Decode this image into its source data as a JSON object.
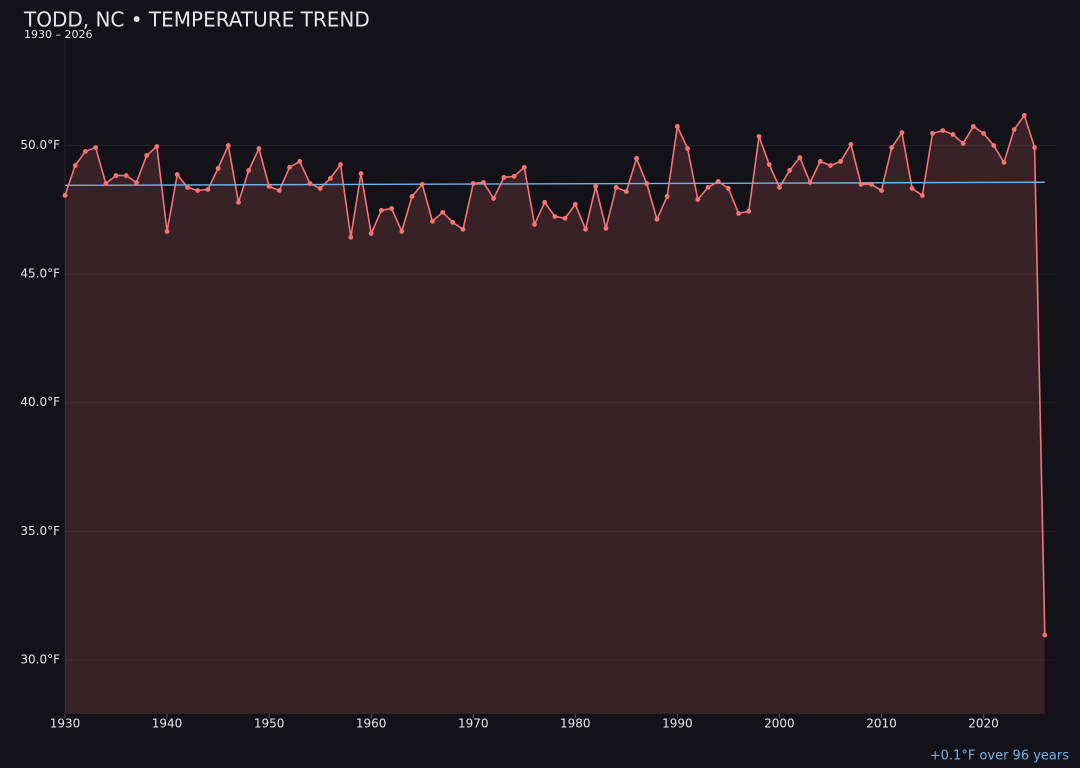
{
  "chart_data": {
    "type": "line",
    "title": "TODD, NC • TEMPERATURE TREND",
    "subtitle": "1930 – 2026",
    "annotation": "+0.1°F over 96 years",
    "x": [
      1930,
      1931,
      1932,
      1933,
      1934,
      1935,
      1936,
      1937,
      1938,
      1939,
      1940,
      1941,
      1942,
      1943,
      1944,
      1945,
      1946,
      1947,
      1948,
      1949,
      1950,
      1951,
      1952,
      1953,
      1954,
      1955,
      1956,
      1957,
      1958,
      1959,
      1960,
      1961,
      1962,
      1963,
      1964,
      1965,
      1966,
      1967,
      1968,
      1969,
      1970,
      1971,
      1972,
      1973,
      1974,
      1975,
      1976,
      1977,
      1978,
      1979,
      1980,
      1981,
      1982,
      1983,
      1984,
      1985,
      1986,
      1987,
      1988,
      1989,
      1990,
      1991,
      1992,
      1993,
      1994,
      1995,
      1996,
      1997,
      1998,
      1999,
      2000,
      2001,
      2002,
      2003,
      2004,
      2005,
      2006,
      2007,
      2008,
      2009,
      2010,
      2011,
      2012,
      2013,
      2014,
      2015,
      2016,
      2017,
      2018,
      2019,
      2020,
      2021,
      2022,
      2023,
      2024,
      2025,
      2026
    ],
    "series": [
      {
        "color": "#f47474",
        "values": [
          48.06,
          49.22,
          49.77,
          49.92,
          48.52,
          48.83,
          48.83,
          48.56,
          49.61,
          49.96,
          46.66,
          48.87,
          48.37,
          48.25,
          48.29,
          49.11,
          50.0,
          47.79,
          49.03,
          49.88,
          48.41,
          48.25,
          49.15,
          49.38,
          48.52,
          48.33,
          48.72,
          49.26,
          46.43,
          48.91,
          46.58,
          47.48,
          47.55,
          46.66,
          48.02,
          48.49,
          47.05,
          47.4,
          47.01,
          46.74,
          48.52,
          48.56,
          47.94,
          48.76,
          48.8,
          49.15,
          46.93,
          47.79,
          47.24,
          47.17,
          47.71,
          46.74,
          48.41,
          46.78,
          48.37,
          48.21,
          49.5,
          48.52,
          47.13,
          48.02,
          50.74,
          49.88,
          47.9,
          48.37,
          48.6,
          48.33,
          47.36,
          47.44,
          50.35,
          49.26,
          48.37,
          49.03,
          49.53,
          48.56,
          49.38,
          49.22,
          49.38,
          50.04,
          48.49,
          48.49,
          48.25,
          49.92,
          50.5,
          48.33,
          48.06,
          50.47,
          50.58,
          50.43,
          50.08,
          50.74,
          50.47,
          50.0,
          49.34,
          50.62,
          51.17,
          49.92,
          30.97
        ]
      }
    ],
    "trend": {
      "color": "#6fb3ea",
      "x": [
        1930,
        2026
      ],
      "values": [
        48.45,
        48.57
      ]
    },
    "xlim": [
      1930,
      2027
    ],
    "xticks": [
      1930,
      1940,
      1950,
      1960,
      1970,
      1980,
      1990,
      2000,
      2010,
      2020
    ],
    "ylim": [
      27.9,
      54.1
    ],
    "yticks": [
      {
        "value": 30,
        "label": "30.0°F"
      },
      {
        "value": 35,
        "label": "35.0°F"
      },
      {
        "value": 40,
        "label": "40.0°F"
      },
      {
        "value": 45,
        "label": "45.0°F"
      },
      {
        "value": 50,
        "label": "50.0°F"
      }
    ],
    "grid": true
  }
}
